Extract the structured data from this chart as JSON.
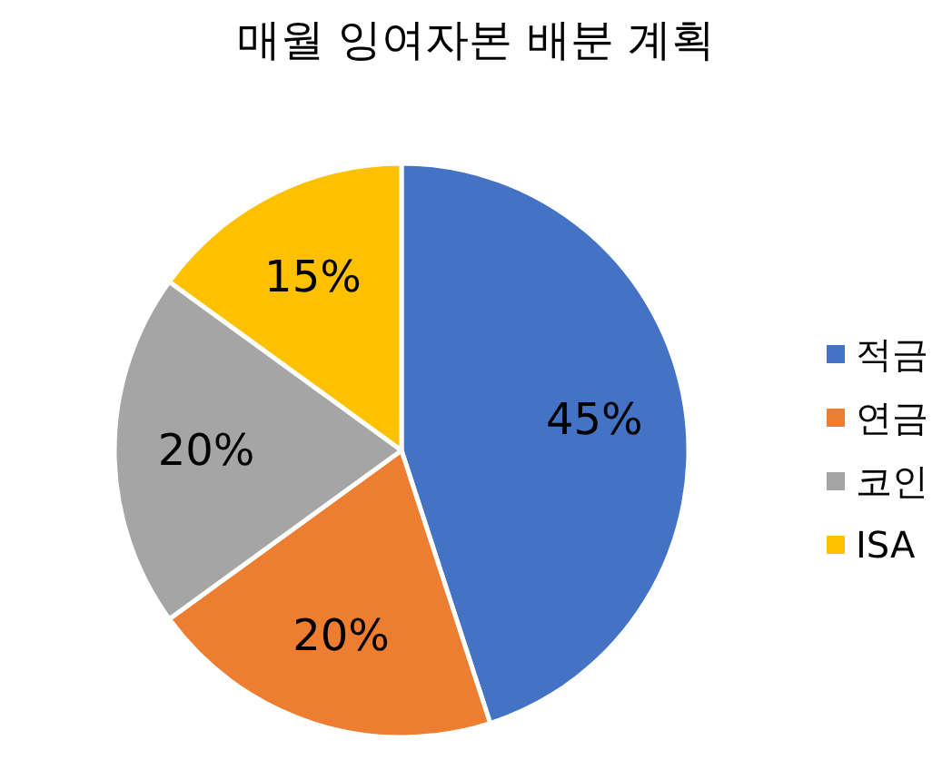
{
  "chart_data": {
    "type": "pie",
    "title": "매월 잉여자본 배분 계획",
    "categories": [
      "적금",
      "연금",
      "코인",
      "ISA"
    ],
    "values": [
      45,
      20,
      20,
      15
    ],
    "value_labels": [
      "45%",
      "20%",
      "20%",
      "15%"
    ],
    "colors": [
      "#4472c4",
      "#ed7d31",
      "#a5a5a5",
      "#ffc000"
    ],
    "legend": "right"
  }
}
